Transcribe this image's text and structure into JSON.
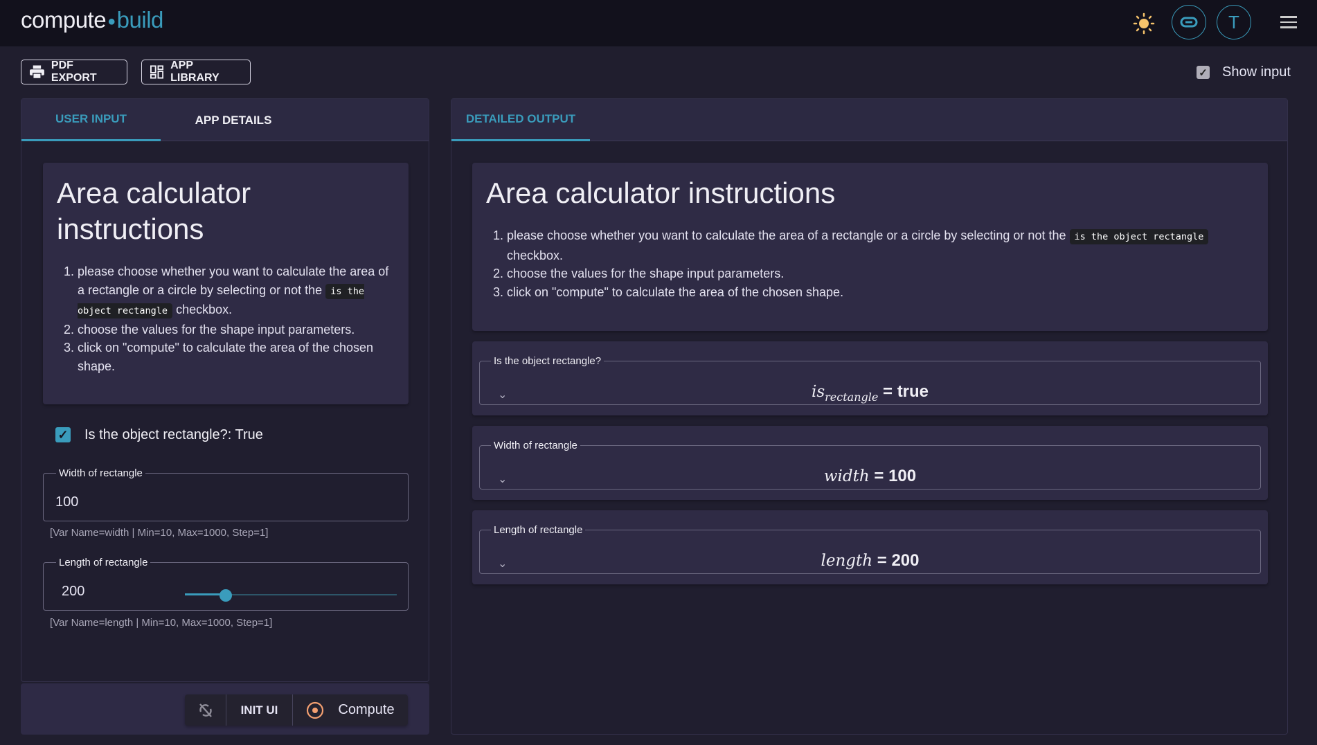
{
  "header": {
    "logo_left": "compute",
    "logo_right": "build",
    "avatar_letter": "T",
    "icons": [
      "sun-icon",
      "link-icon",
      "menu-icon"
    ],
    "accent": "#3a9cbc",
    "sun_color": "#f6c36b"
  },
  "toolbar": {
    "pdf_export": "PDF EXPORT",
    "app_library": "APP LIBRARY",
    "show_input": "Show input",
    "show_input_checked": true
  },
  "left": {
    "tabs": [
      {
        "label": "USER INPUT",
        "active": true
      },
      {
        "label": "APP DETAILS",
        "active": false
      }
    ],
    "instructions": {
      "title": "Area calculator instructions",
      "item1_a": "please choose whether you want to calculate the area of a rectangle or a circle by selecting or not the",
      "item1_code": "is the object rectangle",
      "item1_b": "checkbox.",
      "item2": "choose the values for the shape input parameters.",
      "item3": "click on \"compute\" to calculate the area of the chosen shape."
    },
    "checkbox": {
      "label": "Is the object rectangle?: True",
      "checked": true
    },
    "width": {
      "label": "Width of rectangle",
      "value": "100",
      "help": "[Var Name=width | Min=10, Max=1000, Step=1]"
    },
    "length": {
      "label": "Length of rectangle",
      "value": "200",
      "help": "[Var Name=length | Min=10, Max=1000, Step=1]",
      "slider_min": 10,
      "slider_max": 1000,
      "slider_value": 200
    },
    "actions": {
      "init_ui": "INIT UI",
      "compute": "Compute",
      "compute_color": "#f4a071"
    }
  },
  "right": {
    "tabs": [
      {
        "label": "DETAILED OUTPUT",
        "active": true
      }
    ],
    "outputs": [
      {
        "label": "Is the object rectangle?",
        "var": "is",
        "sub": "rectangle",
        "value": "true"
      },
      {
        "label": "Width of rectangle",
        "var": "width",
        "sub": "",
        "value": "100"
      },
      {
        "label": "Length of rectangle",
        "var": "length",
        "sub": "",
        "value": "200"
      }
    ]
  }
}
